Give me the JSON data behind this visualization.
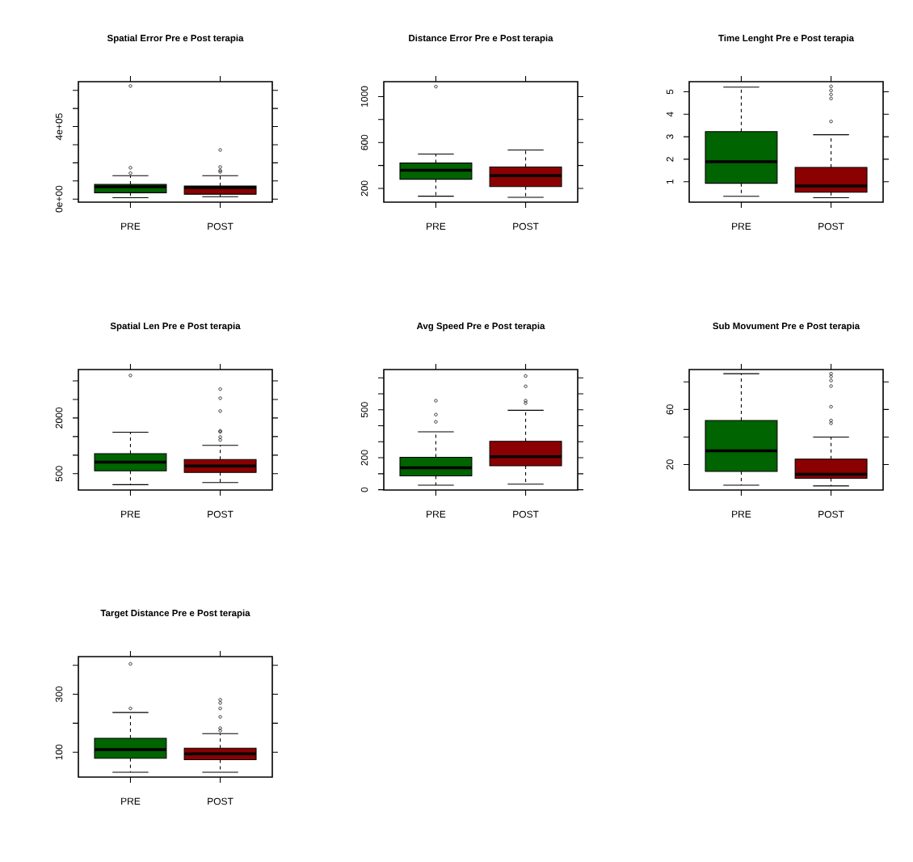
{
  "chart_data": [
    {
      "type": "box",
      "title": "Spatial Error Pre e Post terapia",
      "categories": [
        "PRE",
        "POST"
      ],
      "colors": [
        "#006400",
        "#8b0000"
      ],
      "ylim": [
        -17000,
        648000
      ],
      "yticks": [
        {
          "value": 0,
          "label": "0e+00"
        },
        {
          "value": 100000,
          "label": null
        },
        {
          "value": 200000,
          "label": null
        },
        {
          "value": 300000,
          "label": null
        },
        {
          "value": 400000,
          "label": "4e+05"
        },
        {
          "value": 500000,
          "label": null
        },
        {
          "value": 600000,
          "label": null
        }
      ],
      "boxes": [
        {
          "low": 7500,
          "q1": 35000,
          "median": 68000,
          "q3": 81000,
          "high": 129000,
          "outliers": [
            143000,
            173000,
            624000
          ]
        },
        {
          "low": 13500,
          "q1": 27000,
          "median": 63000,
          "q3": 72000,
          "high": 129000,
          "outliers": [
            150000,
            158000,
            177000,
            271000
          ]
        }
      ]
    },
    {
      "type": "box",
      "title": "Distance Error Pre e Post terapia",
      "categories": [
        "PRE",
        "POST"
      ],
      "colors": [
        "#006400",
        "#8b0000"
      ],
      "ylim": [
        80,
        1130
      ],
      "yticks": [
        200,
        {
          "value": 400,
          "label": null
        },
        600,
        {
          "value": 800,
          "label": null
        },
        1000
      ],
      "boxes": [
        {
          "low": 132,
          "q1": 280,
          "median": 358,
          "q3": 421,
          "high": 499,
          "outliers": [
            1087
          ]
        },
        {
          "low": 122,
          "q1": 216,
          "median": 311,
          "q3": 386,
          "high": 534
        }
      ]
    },
    {
      "type": "box",
      "title": "Time Lenght Pre e Post terapia",
      "categories": [
        "PRE",
        "POST"
      ],
      "colors": [
        "#006400",
        "#8b0000"
      ],
      "ylim": [
        0.09,
        5.45
      ],
      "yticks": [
        1,
        2,
        3,
        4,
        5
      ],
      "boxes": [
        {
          "low": 0.35,
          "q1": 0.93,
          "median": 1.89,
          "q3": 3.23,
          "high": 5.21
        },
        {
          "low": 0.29,
          "q1": 0.53,
          "median": 0.81,
          "q3": 1.64,
          "high": 3.09,
          "outliers": [
            3.68,
            4.7,
            4.88,
            5.06,
            5.24
          ]
        }
      ]
    },
    {
      "type": "box",
      "title": "Spatial Len Pre e Post terapia",
      "categories": [
        "PRE",
        "POST"
      ],
      "colors": [
        "#006400",
        "#8b0000"
      ],
      "ylim": [
        61,
        3303
      ],
      "yticks": [
        500,
        {
          "value": 1000,
          "label": null
        },
        {
          "value": 1500,
          "label": null
        },
        2000,
        {
          "value": 2500,
          "label": null
        },
        {
          "value": 3000,
          "label": null
        }
      ],
      "boxes": [
        {
          "low": 205,
          "q1": 579,
          "median": 810,
          "q3": 1040,
          "high": 1617,
          "outliers": [
            3144
          ]
        },
        {
          "low": 262,
          "q1": 536,
          "median": 709,
          "q3": 882,
          "high": 1264,
          "outliers": [
            1408,
            1488,
            1625,
            1654,
            2186,
            2532,
            2777
          ]
        }
      ]
    },
    {
      "type": "box",
      "title": "Avg Speed Pre e Post terapia",
      "categories": [
        "PRE",
        "POST"
      ],
      "colors": [
        "#006400",
        "#8b0000"
      ],
      "ylim": [
        -2,
        752
      ],
      "yticks": [
        0,
        {
          "value": 100,
          "label": null
        },
        200,
        {
          "value": 300,
          "label": null
        },
        {
          "value": 400,
          "label": null
        },
        500,
        {
          "value": 600,
          "label": null
        },
        {
          "value": 700,
          "label": null
        }
      ],
      "boxes": [
        {
          "low": 28,
          "q1": 87,
          "median": 137,
          "q3": 203,
          "high": 362,
          "outliers": [
            425,
            470,
            557
          ]
        },
        {
          "low": 35,
          "q1": 150,
          "median": 207,
          "q3": 303,
          "high": 497,
          "outliers": [
            542,
            557,
            647,
            712
          ]
        }
      ]
    },
    {
      "type": "box",
      "title": "Sub Movument Pre e Post terapia",
      "categories": [
        "PRE",
        "POST"
      ],
      "colors": [
        "#006400",
        "#8b0000"
      ],
      "ylim": [
        1.5,
        89
      ],
      "yticks": [
        20,
        {
          "value": 40,
          "label": null
        },
        60,
        {
          "value": 80,
          "label": null
        }
      ],
      "boxes": [
        {
          "low": 5,
          "q1": 15,
          "median": 30,
          "q3": 52,
          "high": 86
        },
        {
          "low": 4.5,
          "q1": 10,
          "median": 13,
          "q3": 24,
          "high": 40,
          "outliers": [
            50,
            52,
            62,
            77,
            81,
            84,
            86
          ]
        }
      ]
    },
    {
      "type": "box",
      "title": "Target Distance Pre e Post terapia",
      "categories": [
        "PRE",
        "POST"
      ],
      "colors": [
        "#006400",
        "#8b0000"
      ],
      "ylim": [
        14,
        430
      ],
      "yticks": [
        100,
        {
          "value": 200,
          "label": null
        },
        300,
        {
          "value": 400,
          "label": null
        }
      ],
      "boxes": [
        {
          "low": 31,
          "q1": 79,
          "median": 109,
          "q3": 148,
          "high": 237,
          "outliers": [
            251,
            405
          ]
        },
        {
          "low": 31,
          "q1": 74,
          "median": 94,
          "q3": 114,
          "high": 164,
          "outliers": [
            174,
            183,
            222,
            251,
            270,
            281
          ]
        }
      ]
    }
  ]
}
